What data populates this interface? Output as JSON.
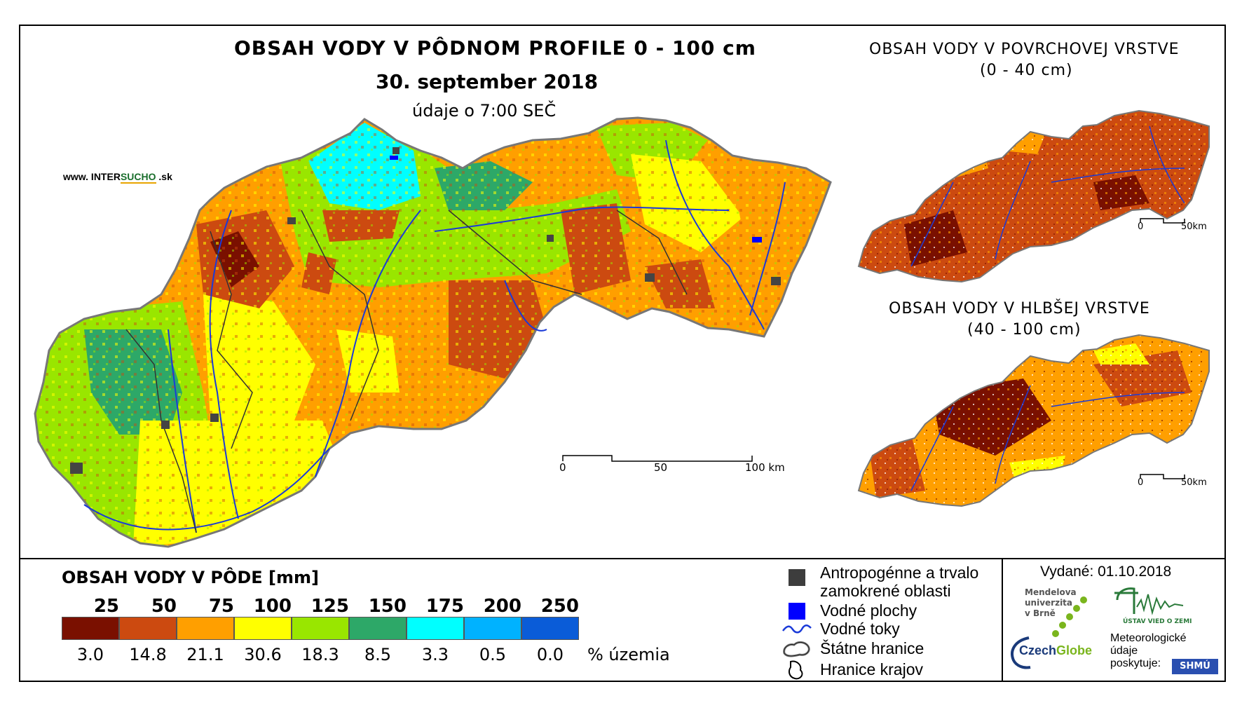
{
  "website": {
    "prefix": "www. INTER",
    "highlight": "SUCHO",
    "suffix": " .sk"
  },
  "main_map": {
    "title": "OBSAH VODY V PÔDNOM PROFILE 0 - 100 cm",
    "date": "30. september 2018",
    "time_note": "údaje o 7:00 SEČ",
    "scale": {
      "labels": [
        "0",
        "50",
        "100 km"
      ]
    }
  },
  "inset_top": {
    "title_line1": "OBSAH VODY V POVRCHOVEJ VRSTVE",
    "title_line2": "(0 - 40 cm)",
    "scale": {
      "labels": [
        "0",
        "50km"
      ]
    }
  },
  "inset_bottom": {
    "title_line1": "OBSAH VODY V HLBŠEJ VRSTVE",
    "title_line2": "(40 - 100 cm)",
    "scale": {
      "labels": [
        "0",
        "50km"
      ]
    }
  },
  "legend": {
    "title": "OBSAH VODY V PÔDE [mm]",
    "thresholds": [
      "25",
      "50",
      "75",
      "100",
      "125",
      "150",
      "175",
      "200",
      "250"
    ],
    "classes": [
      {
        "color": "#7a1000",
        "percent": "3.0"
      },
      {
        "color": "#cc4a10",
        "percent": "14.8"
      },
      {
        "color": "#ff9f00",
        "percent": "21.1"
      },
      {
        "color": "#ffff00",
        "percent": "30.6"
      },
      {
        "color": "#99e600",
        "percent": "18.3"
      },
      {
        "color": "#2da868",
        "percent": "8.5"
      },
      {
        "color": "#00ffff",
        "percent": "3.3"
      },
      {
        "color": "#00b2ff",
        "percent": "0.5"
      },
      {
        "color": "#0a5cd8",
        "percent": "0.0"
      }
    ],
    "percent_unit": "% územia"
  },
  "map_legend": {
    "items": [
      {
        "icon": "urban-area-icon",
        "label": "Antropogénne a trvalo"
      },
      {
        "icon": "",
        "label": "zamokrené oblasti"
      },
      {
        "icon": "water-body-icon",
        "label": "Vodné plochy"
      },
      {
        "icon": "river-line-icon",
        "label": "Vodné toky"
      },
      {
        "icon": "state-border-icon",
        "label": "Štátne hranice"
      },
      {
        "icon": "region-border-icon",
        "label": "Hranice krajov"
      }
    ]
  },
  "issued": "Vydané: 01.10.2018",
  "credits": {
    "mendel": [
      "Mendelova",
      "univerzita",
      "v Brně"
    ],
    "czechglobe_a": "Czech",
    "czechglobe_b": "Globe",
    "uvz": "ÚSTAV VIED O ZEMI",
    "shmu_text": [
      "Meteorologické",
      "údaje",
      "poskytuje:"
    ],
    "shmu_logo": "SHMÚ"
  }
}
